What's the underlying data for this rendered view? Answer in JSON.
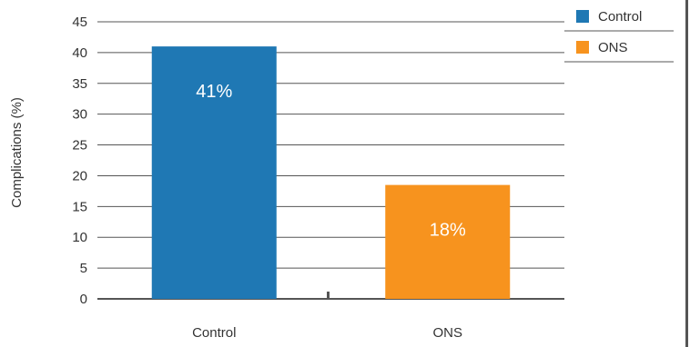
{
  "chart_data": {
    "type": "bar",
    "categories": [
      "Control",
      "ONS"
    ],
    "series": [
      {
        "name": "Control",
        "values": [
          41,
          null
        ],
        "labels": [
          "41%",
          ""
        ],
        "color": "#1f78b4"
      },
      {
        "name": "ONS",
        "values": [
          null,
          18.5
        ],
        "labels": [
          "",
          "18%"
        ],
        "color": "#f7931e"
      }
    ],
    "ylabel": "Complications (%)",
    "ylim": [
      0,
      45
    ],
    "yticks": [
      0,
      5,
      10,
      15,
      20,
      25,
      30,
      35,
      40,
      45
    ],
    "grid": true,
    "legend_position": "right-top"
  },
  "colors": {
    "grid": "#555555",
    "text": "#333333",
    "right_border": "#555555"
  }
}
